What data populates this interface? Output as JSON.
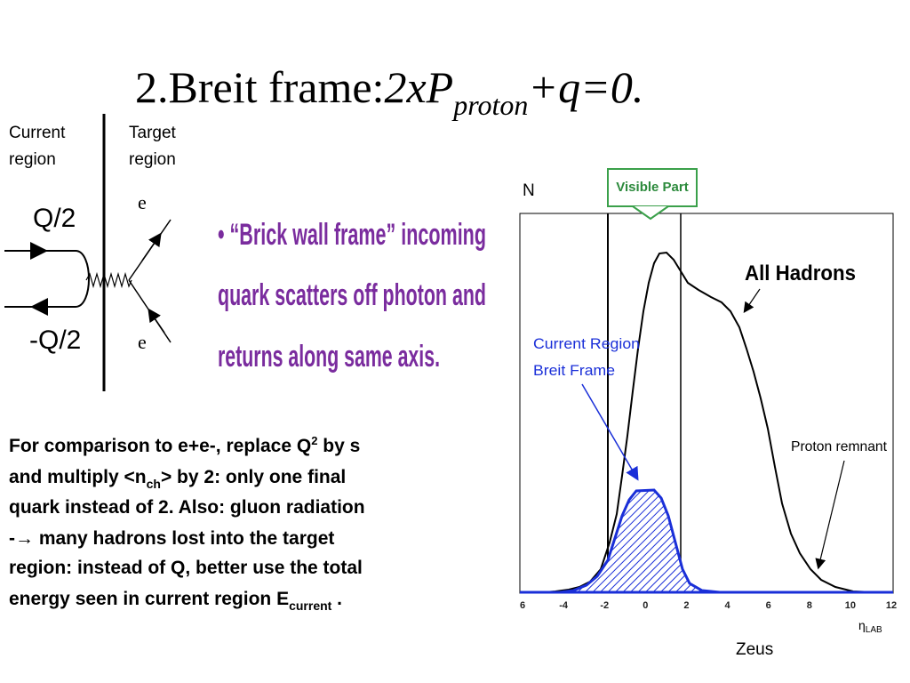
{
  "title": {
    "main": "2.Breit frame:",
    "formula": "2xP",
    "subscript": "proton",
    "formula_end": "+q=0."
  },
  "diagram": {
    "current_region": [
      "Current",
      "region"
    ],
    "target_region": [
      "Target",
      "region"
    ],
    "upper_charge": "Q/2",
    "lower_charge": "-Q/2",
    "upper_electron": "e",
    "lower_electron": "e"
  },
  "bullet": {
    "lines": [
      "• “Brick wall frame” incoming",
      "quark scatters off photon and",
      "returns along same axis."
    ]
  },
  "paragraph": {
    "parts": [
      "For comparison to e+e-, replace Q",
      "2",
      " by s",
      "and multiply <n",
      "ch",
      "> by 2: only one final",
      "quark instead of 2. Also: gluon radiation",
      "-",
      "→",
      " many hadrons lost into the target",
      "region: instead of Q, better use the total",
      "energy seen in current region E",
      "current",
      " ."
    ]
  },
  "figure": {
    "y_label": "N",
    "visible_part": "Visible Part",
    "all_hadrons": "All Hadrons",
    "current_region": [
      "Current Region",
      "Breit Frame"
    ],
    "proton_remnant": "Proton remnant",
    "x_ticks": [
      "6",
      "-4",
      "-2",
      "0",
      "2",
      "4",
      "6",
      "8",
      "10",
      "12"
    ],
    "x_label": "η",
    "x_label_sub": "LAB",
    "credit": "Zeus"
  }
}
